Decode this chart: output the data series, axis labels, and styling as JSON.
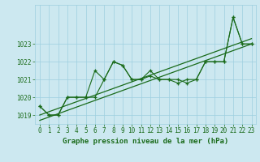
{
  "title": "Graphe pression niveau de la mer (hPa)",
  "x_values": [
    0,
    1,
    2,
    3,
    4,
    5,
    6,
    7,
    8,
    9,
    10,
    11,
    12,
    13,
    14,
    15,
    16,
    17,
    18,
    19,
    20,
    21,
    22,
    23
  ],
  "line1": [
    1019.5,
    1019.0,
    1019.0,
    1020.0,
    1020.0,
    1020.0,
    1021.5,
    1021.0,
    1022.0,
    1021.8,
    1021.0,
    1021.0,
    1021.5,
    1021.0,
    1021.0,
    1021.0,
    1020.8,
    1021.0,
    1022.0,
    1022.0,
    1022.0,
    1024.5,
    1023.0,
    1023.0
  ],
  "line2": [
    1019.5,
    1019.0,
    1019.0,
    1020.0,
    1020.0,
    1020.0,
    1020.0,
    1021.0,
    1022.0,
    1021.8,
    1021.0,
    1021.0,
    1021.2,
    1021.0,
    1021.0,
    1020.8,
    1021.0,
    1021.0,
    1022.0,
    1022.0,
    1022.0,
    1024.5,
    1023.0,
    1023.0
  ],
  "trend1_y": [
    1019.0,
    1023.3
  ],
  "trend2_y": [
    1018.7,
    1023.0
  ],
  "line_color": "#1a6b1a",
  "bg_color": "#cce8f0",
  "grid_color": "#9ecfdf",
  "ylim": [
    1018.5,
    1025.2
  ],
  "xlim": [
    -0.5,
    23.5
  ],
  "yticks": [
    1019,
    1020,
    1021,
    1022,
    1023
  ],
  "xticks": [
    0,
    1,
    2,
    3,
    4,
    5,
    6,
    7,
    8,
    9,
    10,
    11,
    12,
    13,
    14,
    15,
    16,
    17,
    18,
    19,
    20,
    21,
    22,
    23
  ],
  "xlabel_fontsize": 6.5,
  "tick_fontsize": 5.5
}
